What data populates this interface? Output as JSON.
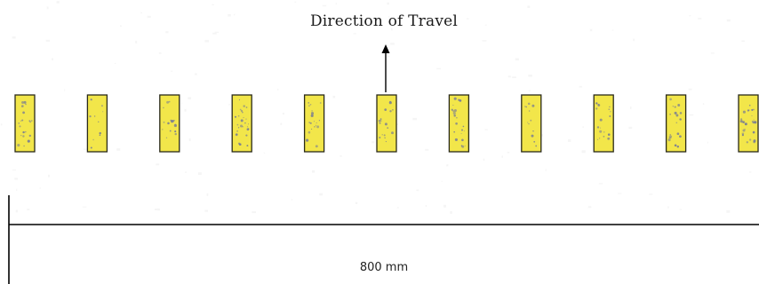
{
  "diagram": {
    "direction_label": "Direction of Travel",
    "dimension_label": "800 mm",
    "sample_count": 11,
    "colors": {
      "sample_fill": "#f2e64a",
      "sample_stroke": "#2a2a1a",
      "speckle": "#7a7e92",
      "line": "#000000"
    }
  }
}
